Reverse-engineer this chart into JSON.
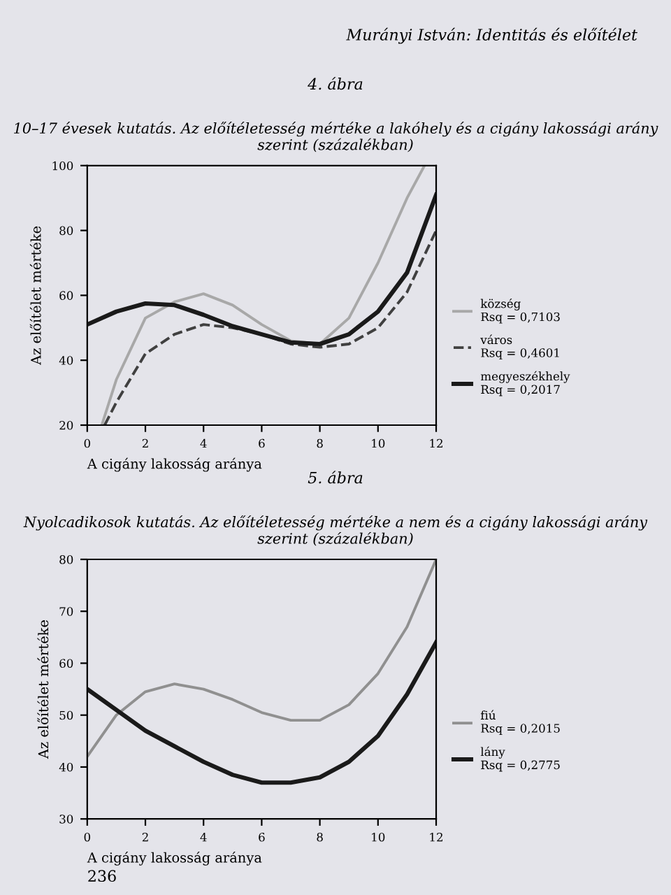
{
  "chart_data": [
    {
      "type": "line",
      "title": "4. ábra",
      "subtitle": "10–17 évesek kutatás. Az előítéletesség mértéke a lakóhely és a cigány lakossági arány szerint (százalékban)",
      "xlabel": "A cigány lakosság aránya",
      "ylabel": "Az előítélet mértéke",
      "xlim": [
        0,
        12
      ],
      "ylim": [
        20,
        100
      ],
      "xticks": [
        0,
        2,
        4,
        6,
        8,
        10,
        12
      ],
      "yticks": [
        20,
        40,
        60,
        80,
        100
      ],
      "grid": false,
      "legend": "right",
      "annotations": [
        "Murányi István: Identitás és előítélet"
      ],
      "series": [
        {
          "name": "község\nRsq = 0,7103",
          "color": "#a8a8a8",
          "line_style": "solid",
          "x": [
            0.5,
            1,
            2,
            3,
            4,
            5,
            6,
            7,
            8,
            9,
            10,
            11,
            11.6
          ],
          "values": [
            20,
            34,
            53,
            58,
            60.5,
            57,
            51,
            46,
            45,
            53,
            70,
            90,
            100
          ]
        },
        {
          "name": "város\nRsq = 0,4601",
          "color": "#404040",
          "line_style": "dashed",
          "x": [
            0.6,
            1,
            2,
            3,
            4,
            5,
            6,
            7,
            8,
            9,
            10,
            11,
            12
          ],
          "values": [
            20,
            27,
            42,
            48,
            51,
            50,
            48,
            45,
            44,
            45,
            50,
            61,
            80
          ]
        },
        {
          "name": "megyeszékhely\nRsq = 0,2017",
          "color": "#1a1a1a",
          "line_style": "solid",
          "x": [
            0,
            1,
            2,
            3,
            4,
            5,
            6,
            7,
            8,
            9,
            10,
            11,
            12
          ],
          "values": [
            51,
            55,
            57.5,
            57,
            54,
            50.5,
            48,
            45.5,
            45,
            48,
            55,
            67,
            91
          ]
        }
      ]
    },
    {
      "type": "line",
      "title": "5. ábra",
      "subtitle": "Nyolcadikosok kutatás. Az előítéletesség mértéke a nem és a cigány lakossági arány szerint (százalékban)",
      "xlabel": "A cigány lakosság aránya",
      "ylabel": "Az előítélet mértéke",
      "xlim": [
        0,
        12
      ],
      "ylim": [
        30,
        80
      ],
      "xticks": [
        0,
        2,
        4,
        6,
        8,
        10,
        12
      ],
      "yticks": [
        30,
        40,
        50,
        60,
        70,
        80
      ],
      "grid": false,
      "legend": "right",
      "annotations": [
        "236"
      ],
      "series": [
        {
          "name": "fiú\nRsq = 0,2015",
          "color": "#909090",
          "line_style": "solid",
          "x": [
            0,
            1,
            2,
            3,
            4,
            5,
            6,
            7,
            8,
            9,
            10,
            11,
            12
          ],
          "values": [
            42,
            50,
            54.5,
            56,
            55,
            53,
            50.5,
            49,
            49,
            52,
            58,
            67,
            80
          ]
        },
        {
          "name": "lány\nRsq = 0,2775",
          "color": "#1a1a1a",
          "line_style": "solid",
          "x": [
            0,
            1,
            2,
            3,
            4,
            5,
            6,
            7,
            8,
            9,
            10,
            11,
            12
          ],
          "values": [
            55,
            51,
            47,
            44,
            41,
            38.5,
            37,
            37,
            38,
            41,
            46,
            54,
            64
          ]
        }
      ]
    }
  ]
}
